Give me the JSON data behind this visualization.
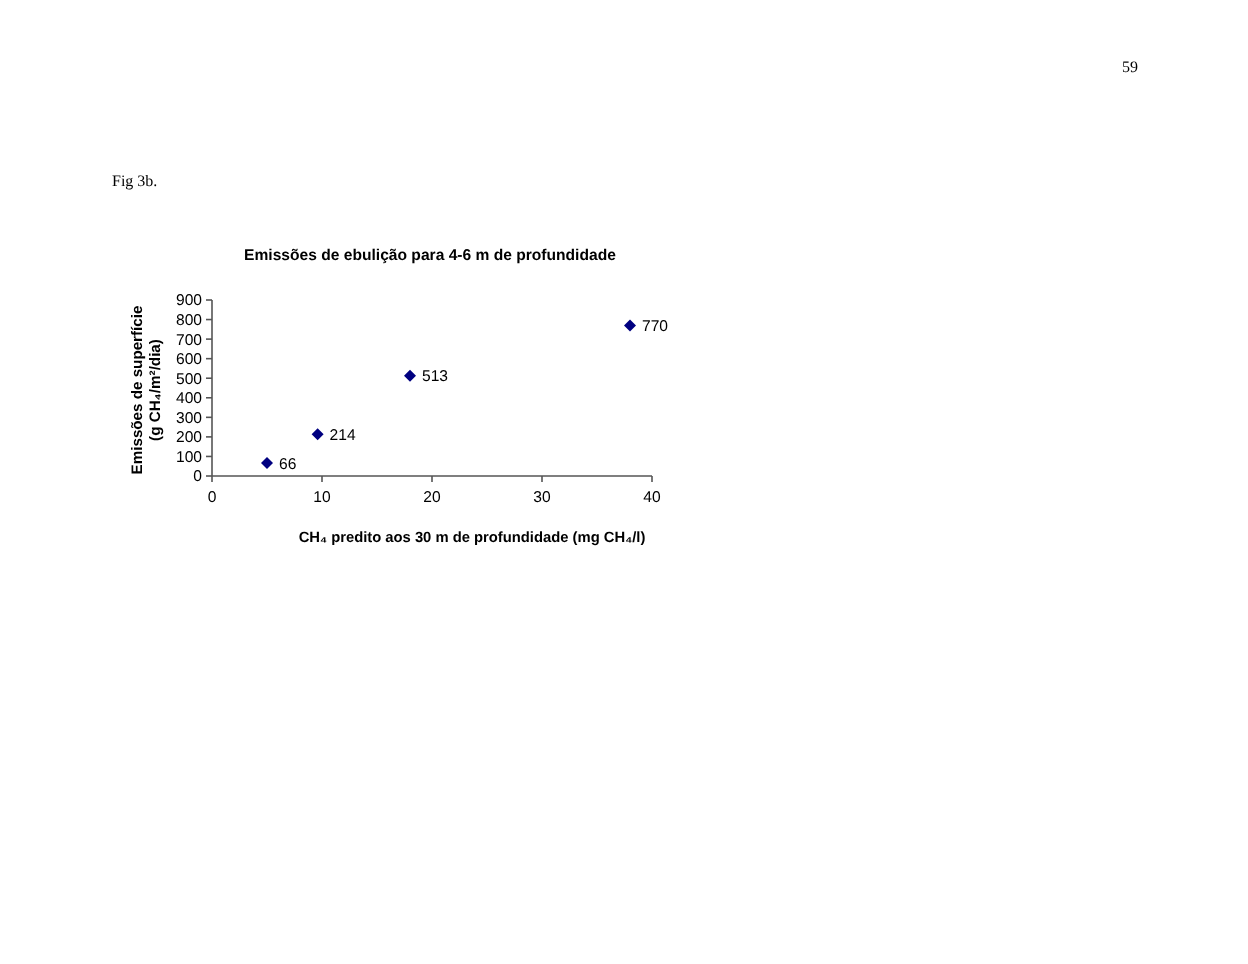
{
  "chart_data": {
    "type": "scatter",
    "title": "Emissões de ebulição para 4-6 m de profundidade",
    "xlabel": "CH₄ predito aos 30 m de profundidade (mg CH₄/l)",
    "ylabel": "Emissões de superfície\n(g CH₄/m²/dia)",
    "annotations": [
      "59",
      "Fig 3b."
    ],
    "x": [
      5,
      9.6,
      18,
      38
    ],
    "values": [
      66,
      214,
      513,
      770
    ],
    "color": "#000080",
    "marker": "diamond",
    "data_labels": true,
    "xlim": [
      0,
      40
    ],
    "xticks": [
      0,
      10,
      20,
      30,
      40
    ],
    "ylim": [
      0,
      900
    ],
    "yticks": [
      0,
      100,
      200,
      300,
      400,
      500,
      600,
      700,
      800,
      900
    ]
  }
}
